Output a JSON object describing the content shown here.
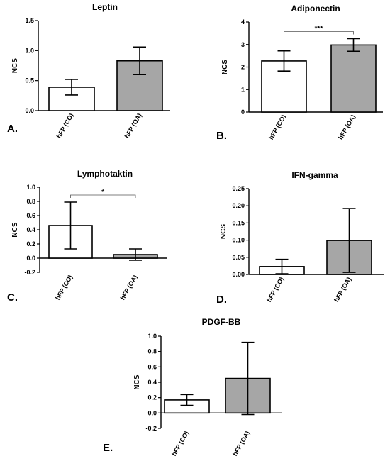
{
  "chart_data": [
    {
      "panel": "A.",
      "type": "bar",
      "title": "Leptin",
      "ylabel": "NCS",
      "categories": [
        "hFP (CO)",
        "hFP (OA)"
      ],
      "values": [
        0.39,
        0.83
      ],
      "errors": [
        0.13,
        0.23
      ],
      "colors": [
        "#ffffff",
        "#a6a6a6"
      ],
      "ylim": [
        0,
        1.5
      ],
      "yticks": [
        "0.0",
        "0.5",
        "1.0",
        "1.5"
      ],
      "ytick_values": [
        0,
        0.5,
        1.0,
        1.5
      ],
      "significance": null
    },
    {
      "panel": "B.",
      "type": "bar",
      "title": "Adiponectin",
      "ylabel": "NCS",
      "categories": [
        "hFP (CO)",
        "hFP (OA)"
      ],
      "values": [
        2.27,
        2.98
      ],
      "errors": [
        0.45,
        0.28
      ],
      "colors": [
        "#ffffff",
        "#a6a6a6"
      ],
      "ylim": [
        0,
        4
      ],
      "yticks": [
        "0",
        "1",
        "2",
        "3",
        "4"
      ],
      "ytick_values": [
        0,
        1,
        2,
        3,
        4
      ],
      "significance": "***"
    },
    {
      "panel": "C.",
      "type": "bar",
      "title": "Lymphotaktin",
      "ylabel": "NCS",
      "categories": [
        "hFP (CO)",
        "hFP (OA)"
      ],
      "values": [
        0.46,
        0.05
      ],
      "errors": [
        0.33,
        0.08
      ],
      "colors": [
        "#ffffff",
        "#a6a6a6"
      ],
      "ylim": [
        -0.2,
        1.0
      ],
      "yticks": [
        "-0.2",
        "0.0",
        "0.2",
        "0.4",
        "0.6",
        "0.8",
        "1.0"
      ],
      "ytick_values": [
        -0.2,
        0,
        0.2,
        0.4,
        0.6,
        0.8,
        1.0
      ],
      "significance": "*"
    },
    {
      "panel": "D.",
      "type": "bar",
      "title": "IFN-gamma",
      "ylabel": "NCS",
      "categories": [
        "hFP (CO)",
        "hFP (OA)"
      ],
      "values": [
        0.023,
        0.099
      ],
      "errors": [
        0.021,
        0.093
      ],
      "colors": [
        "#ffffff",
        "#a6a6a6"
      ],
      "ylim": [
        0,
        0.25
      ],
      "yticks": [
        "0.00",
        "0.05",
        "0.10",
        "0.15",
        "0.20",
        "0.25"
      ],
      "ytick_values": [
        0,
        0.05,
        0.1,
        0.15,
        0.2,
        0.25
      ],
      "significance": null
    },
    {
      "panel": "E.",
      "type": "bar",
      "title": "PDGF-BB",
      "ylabel": "NCS",
      "categories": [
        "hFP (CO)",
        "hFP (OA)"
      ],
      "values": [
        0.17,
        0.45
      ],
      "errors": [
        0.07,
        0.47
      ],
      "colors": [
        "#ffffff",
        "#a6a6a6"
      ],
      "ylim": [
        -0.2,
        1.0
      ],
      "yticks": [
        "-0.2",
        "0.0",
        "0.2",
        "0.4",
        "0.6",
        "0.8",
        "1.0"
      ],
      "ytick_values": [
        -0.2,
        0,
        0.2,
        0.4,
        0.6,
        0.8,
        1.0
      ],
      "significance": null
    }
  ]
}
